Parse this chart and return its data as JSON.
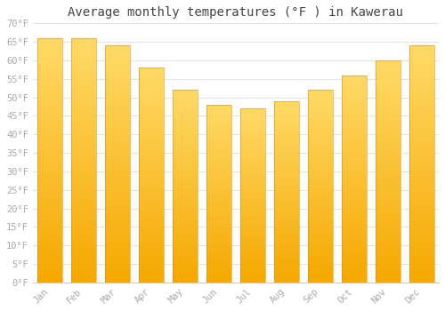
{
  "months": [
    "Jan",
    "Feb",
    "Mar",
    "Apr",
    "May",
    "Jun",
    "Jul",
    "Aug",
    "Sep",
    "Oct",
    "Nov",
    "Dec"
  ],
  "values": [
    66,
    66,
    64,
    58,
    52,
    48,
    47,
    49,
    52,
    56,
    60,
    64
  ],
  "bar_color_bottom": "#F5A800",
  "bar_color_top": "#FFD966",
  "title": "Average monthly temperatures (°F ) in Kawerau",
  "ylim": [
    0,
    70
  ],
  "ytick_step": 5,
  "background_color": "#ffffff",
  "grid_color": "#dddddd",
  "title_fontsize": 10,
  "tick_fontsize": 7.5,
  "tick_color": "#aaaaaa"
}
